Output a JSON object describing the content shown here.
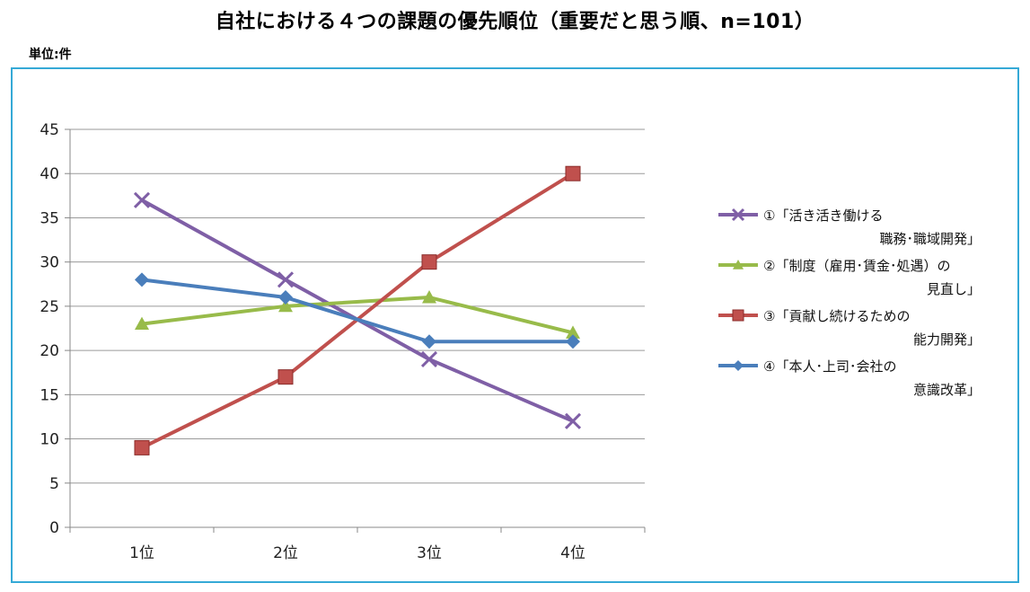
{
  "page": {
    "title": "自社における４つの課題の優先順位（重要だと思う順、n=101）",
    "unit_label": "単位:件"
  },
  "chart_data": {
    "type": "line",
    "title": "自社における４つの課題の優先順位（重要だと思う順、n=101）",
    "xlabel": "",
    "ylabel": "",
    "categories": [
      "1位",
      "2位",
      "3位",
      "4位"
    ],
    "ylim": [
      0,
      45
    ],
    "yticks": [
      0,
      5,
      10,
      15,
      20,
      25,
      30,
      35,
      40,
      45
    ],
    "grid": true,
    "legend_position": "right",
    "series": [
      {
        "name": "①「活き活き働ける\n職務･職域開発」",
        "values": [
          37,
          28,
          19,
          12
        ],
        "color": "#7f5fa6",
        "marker": "x"
      },
      {
        "name": "②「制度（雇用･賃金･処遇）の\n見直し」",
        "values": [
          23,
          25,
          26,
          22
        ],
        "color": "#98bb4a",
        "marker": "triangle"
      },
      {
        "name": "③「貢献し続けるための\n能力開発」",
        "values": [
          9,
          17,
          30,
          40
        ],
        "color": "#c0504d",
        "marker": "square"
      },
      {
        "name": "④「本人･上司･会社の\n意識改革」",
        "values": [
          28,
          26,
          21,
          21
        ],
        "color": "#4a7ebb",
        "marker": "diamond"
      }
    ]
  }
}
